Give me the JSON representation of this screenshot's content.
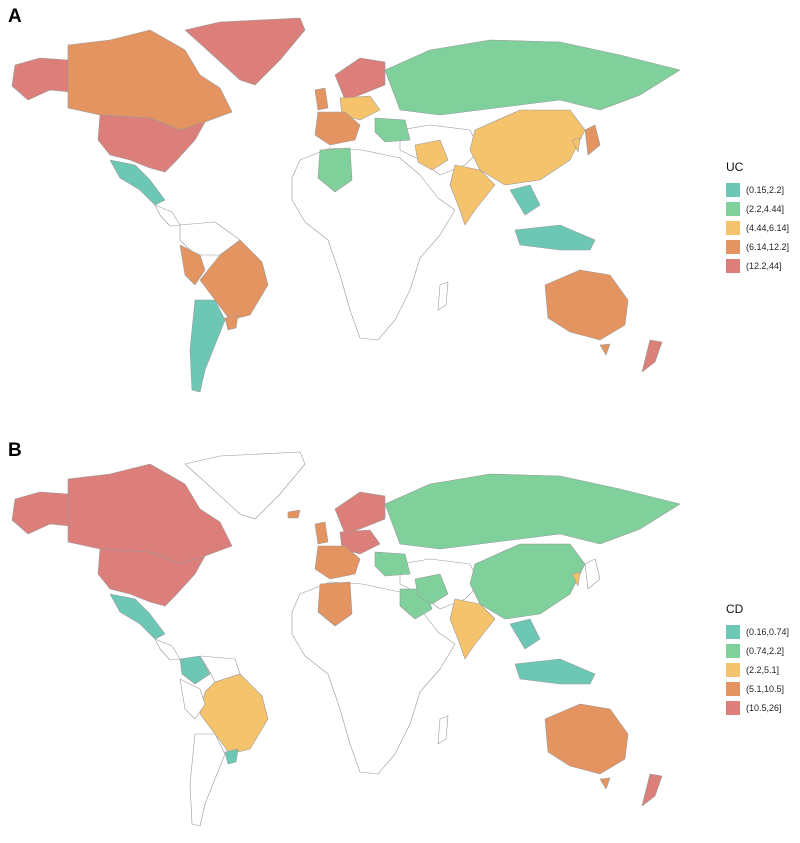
{
  "panels": [
    {
      "letter": "A",
      "legend_title": "UC",
      "legend": [
        {
          "label": "(0.15,2.2]",
          "color": "#6cc7b5"
        },
        {
          "label": "(2.2,4.44]",
          "color": "#7fd09a"
        },
        {
          "label": "(4.44,6.14]",
          "color": "#f5c36b"
        },
        {
          "label": "(6.14,12.2]",
          "color": "#e39460"
        },
        {
          "label": "(12.2,44]",
          "color": "#dc7f7a"
        }
      ]
    },
    {
      "letter": "B",
      "legend_title": "CD",
      "legend": [
        {
          "label": "(0.16,0.74]",
          "color": "#6cc7b5"
        },
        {
          "label": "(0.74,2.2]",
          "color": "#7fd09a"
        },
        {
          "label": "(2.2,5.1]",
          "color": "#f5c36b"
        },
        {
          "label": "(5.1,10.5]",
          "color": "#e39460"
        },
        {
          "label": "(10.5,26]",
          "color": "#dc7f7a"
        }
      ]
    }
  ]
}
